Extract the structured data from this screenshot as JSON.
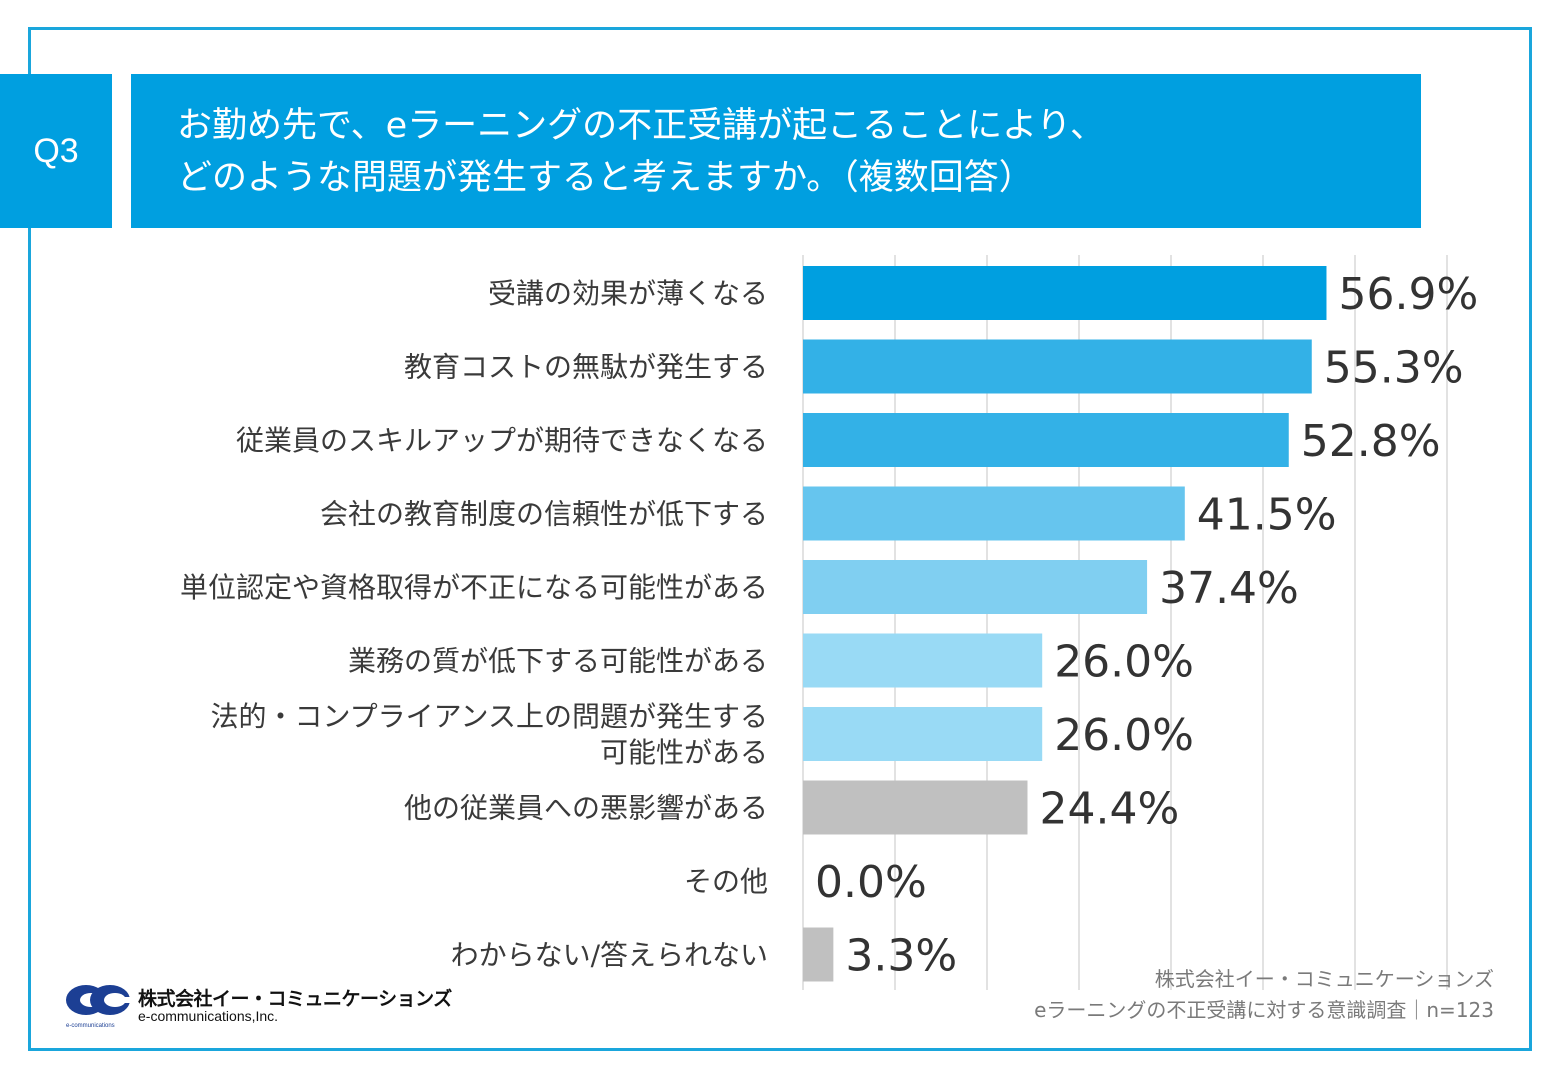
{
  "header": {
    "question_label": "Q3",
    "title_line1": "お勤め先で、eラーニングの不正受講が起こることにより、",
    "title_line2": "どのような問題が発生すると考えますか。（複数回答）"
  },
  "chart_data": {
    "type": "bar",
    "orientation": "horizontal",
    "title": "お勤め先で、eラーニングの不正受講が起こることにより、どのような問題が発生すると考えますか。（複数回答）",
    "categories": [
      [
        "受講の効果が薄くなる"
      ],
      [
        "教育コストの無駄が発生する"
      ],
      [
        "従業員のスキルアップが期待できなくなる"
      ],
      [
        "会社の教育制度の信頼性が低下する"
      ],
      [
        "単位認定や資格取得が不正になる可能性がある"
      ],
      [
        "業務の質が低下する可能性がある"
      ],
      [
        "法的・コンプライアンス上の問題が発生する",
        "可能性がある"
      ],
      [
        "他の従業員への悪影響がある"
      ],
      [
        "その他"
      ],
      [
        "わからない/答えられない"
      ]
    ],
    "values": [
      56.9,
      55.3,
      52.8,
      41.5,
      37.4,
      26.0,
      26.0,
      24.4,
      0.0,
      3.3
    ],
    "value_labels": [
      "56.9%",
      "55.3%",
      "52.8%",
      "41.5%",
      "37.4%",
      "26.0%",
      "26.0%",
      "24.4%",
      "0.0%",
      "3.3%"
    ],
    "colors": [
      "#009fe0",
      "#33b1e7",
      "#33b1e7",
      "#66c5ee",
      "#80cff1",
      "#99daf5",
      "#99daf5",
      "#c0c0c0",
      "#c0c0c0",
      "#c0c0c0"
    ],
    "xlim": [
      0,
      70
    ],
    "gridline_step": 10,
    "grid": true
  },
  "footer": {
    "line1": "株式会社イー・コミュニケーションズ",
    "line2": "eラーニングの不正受講に対する意識調査｜n=123"
  },
  "logo": {
    "name_jp": "株式会社イー・コミュニケーションズ",
    "name_en": "e-communications,Inc.",
    "tag": "e-communications"
  }
}
